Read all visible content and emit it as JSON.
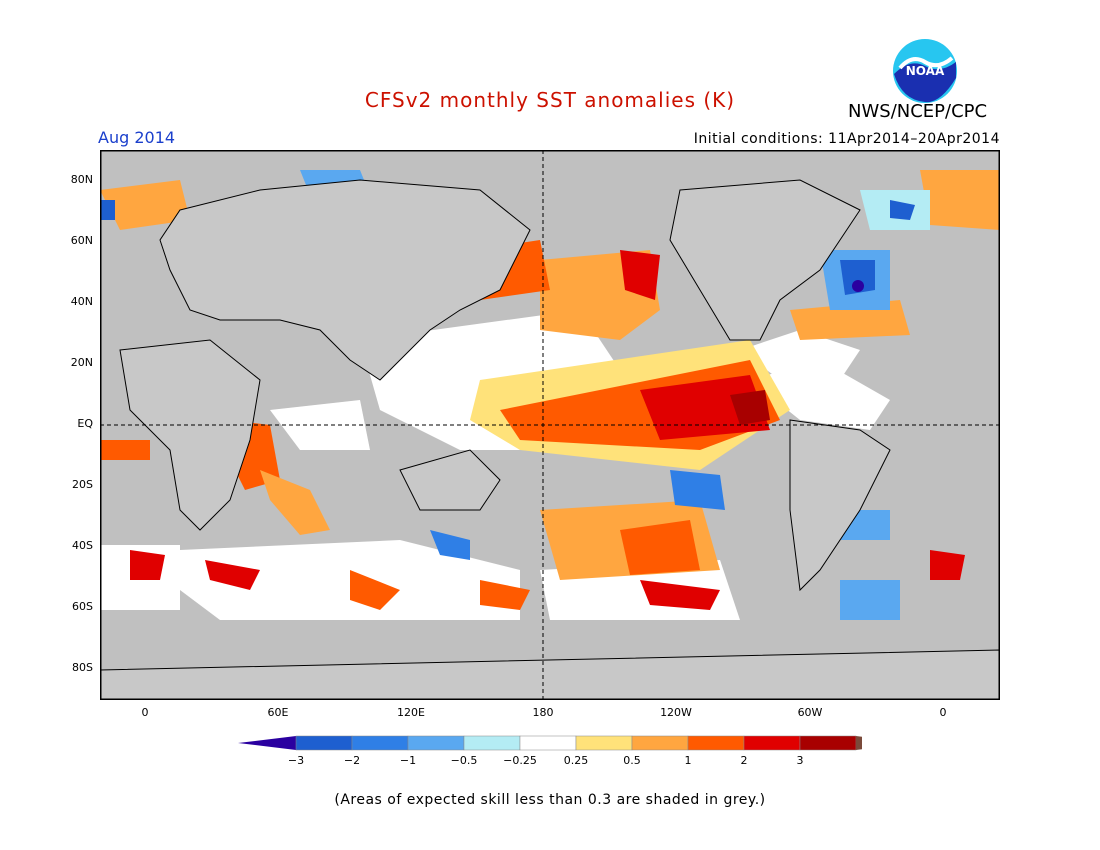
{
  "title": "CFSv2 monthly SST anomalies (K)",
  "month": "Aug 2014",
  "initial_conditions": "Initial conditions: 11Apr2014–20Apr2014",
  "agency": "NWS/NCEP/CPC",
  "logo_text": "NOAA",
  "footnote": "(Areas of expected skill less than 0.3 are shaded in grey.)",
  "colors": {
    "title": "#cc1100",
    "month": "#1a3fcc",
    "land": "#c8c8c8",
    "ocean_grey": "#c0c0c0",
    "map_frame": "#000000"
  },
  "lat_ticks": [
    "80N",
    "60N",
    "40N",
    "20N",
    "EQ",
    "20S",
    "40S",
    "60S",
    "80S"
  ],
  "lon_ticks": [
    "0",
    "60E",
    "120E",
    "180",
    "120W",
    "60W",
    "0"
  ],
  "colorbar": {
    "labels": [
      "−3",
      "−2",
      "−1",
      "−0.5",
      "−0.25",
      "0.25",
      "0.5",
      "1",
      "2",
      "3"
    ],
    "colors": [
      "#2a00a0",
      "#1e5fd0",
      "#2f7fe6",
      "#5aa8f0",
      "#b4ecf4",
      "#ffffff",
      "#ffe27a",
      "#ffa640",
      "#ff5a00",
      "#e00000",
      "#a80000",
      "#7a4a3a"
    ]
  },
  "chart_data": {
    "type": "heatmap",
    "title": "CFSv2 monthly SST anomalies (K)",
    "period": "Aug 2014",
    "units": "K",
    "xlim": [
      -20,
      380
    ],
    "ylim": [
      -90,
      90
    ],
    "x_ticks": [
      "0",
      "60E",
      "120E",
      "180",
      "120W",
      "60W",
      "0"
    ],
    "y_ticks": [
      "80N",
      "60N",
      "40N",
      "20N",
      "EQ",
      "20S",
      "40S",
      "60S",
      "80S"
    ],
    "color_levels": [
      -3,
      -2,
      -1,
      -0.5,
      -0.25,
      0.25,
      0.5,
      1,
      2,
      3
    ],
    "dashed_reference_lines": [
      "Equator",
      "180"
    ],
    "anomaly_regions": [
      {
        "region": "central-eastern equatorial Pacific",
        "anomaly": "1 to 3"
      },
      {
        "region": "northeast Pacific (Gulf of Alaska)",
        "anomaly": "1 to 2"
      },
      {
        "region": "northwest Pacific",
        "anomaly": "1 to 2"
      },
      {
        "region": "western Indian Ocean / Madagascar",
        "anomaly": "1 to 2"
      },
      {
        "region": "subtropical North Atlantic",
        "anomaly": "0.5 to 1"
      },
      {
        "region": "southeast Pacific subtropics",
        "anomaly": "-0.5 to -1"
      },
      {
        "region": "central North Atlantic",
        "anomaly": "-1 to -2"
      },
      {
        "region": "south Pacific 40S-60S",
        "anomaly": "0.5 to 2"
      }
    ]
  }
}
